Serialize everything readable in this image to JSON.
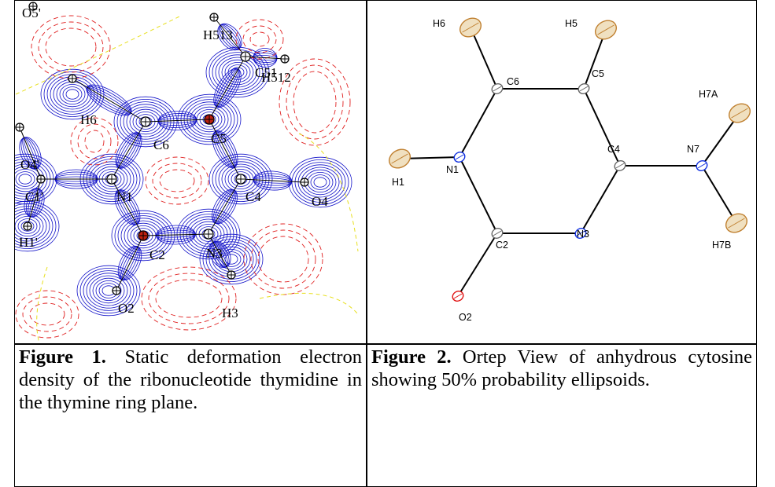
{
  "figure1": {
    "labels": [
      "O5'",
      "H513",
      "C51",
      "H512",
      "H6",
      "C6",
      "C5",
      "O4'",
      "C1'",
      "N1",
      "C4",
      "O4",
      "H1'",
      "C2",
      "N3",
      "O2",
      "H3"
    ]
  },
  "figure2": {
    "labels": [
      "H6",
      "H5",
      "C6",
      "C5",
      "H7A",
      "N1",
      "C4",
      "N7",
      "H1",
      "C2",
      "N3",
      "H7B",
      "O2"
    ]
  },
  "captions": [
    {
      "label": "Figure 1.",
      "text": "Static deformation electron density of the ribonucleotide thymidine in the thymine ring plane."
    },
    {
      "label": "Figure 2.",
      "text": "Ortep View of anhydrous cytosine showing 50% probability ellipsoids."
    }
  ]
}
